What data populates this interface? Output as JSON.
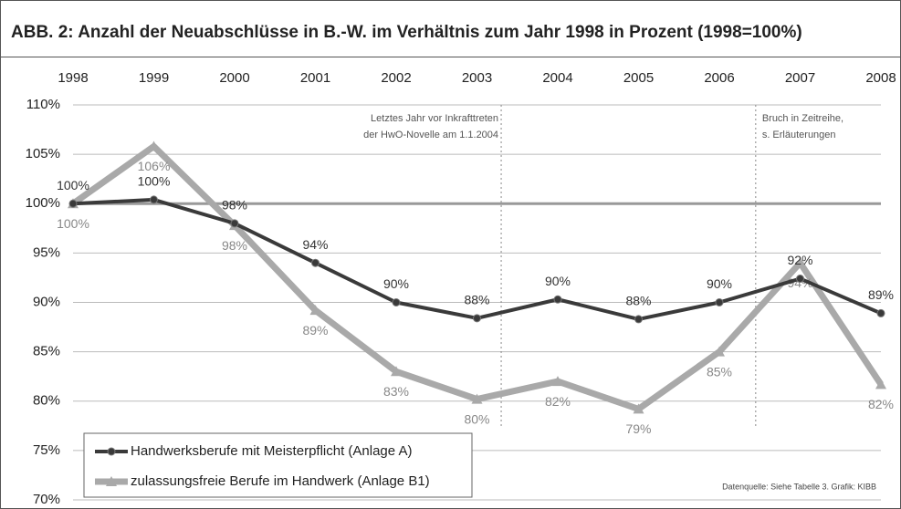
{
  "chart_data": {
    "type": "line",
    "title": "ABB. 2: Anzahl der Neuabschlüsse in B.-W. im Verhältnis zum Jahr 1998 in Prozent (1998=100%)",
    "x": [
      1998,
      1999,
      2000,
      2001,
      2002,
      2003,
      2004,
      2005,
      2006,
      2007,
      2008
    ],
    "xlim": [
      1998,
      2008
    ],
    "xticks": [
      1998,
      1999,
      2000,
      2001,
      2002,
      2003,
      2004,
      2005,
      2006,
      2007,
      2008
    ],
    "ylim": [
      70,
      110
    ],
    "yticks": [
      {
        "value": 70,
        "label": "70%"
      },
      {
        "value": 75,
        "label": "75%"
      },
      {
        "value": 80,
        "label": "80%"
      },
      {
        "value": 85,
        "label": "85%"
      },
      {
        "value": 90,
        "label": "90%"
      },
      {
        "value": 95,
        "label": "95%"
      },
      {
        "value": 100,
        "label": "100%"
      },
      {
        "value": 105,
        "label": "105%"
      },
      {
        "value": 110,
        "label": "110%"
      }
    ],
    "grid": true,
    "reference_line": 100,
    "legend": "lower left",
    "series": [
      {
        "name": "Handwerksberufe mit Meisterpflicht (Anlage A)",
        "color": "#3a3a3a",
        "marker": "circle",
        "values": [
          100,
          100.4,
          98,
          94,
          90,
          88.4,
          90.3,
          88.3,
          90,
          92.4,
          88.9
        ],
        "value_labels": [
          "100%",
          "100%",
          "98%",
          "94%",
          "90%",
          "88%",
          "90%",
          "88%",
          "90%",
          "92%",
          "89%"
        ]
      },
      {
        "name": "zulassungsfreie Berufe im Handwerk (Anlage B1)",
        "color": "#a9a9a9",
        "marker": "triangle",
        "values": [
          100,
          105.8,
          97.8,
          89.2,
          83,
          80.2,
          82,
          79.2,
          85,
          94,
          81.7
        ],
        "value_labels": [
          "100%",
          "106%",
          "98%",
          "89%",
          "83%",
          "80%",
          "82%",
          "79%",
          "85%",
          "94%",
          "82%"
        ]
      }
    ],
    "annotations": [
      {
        "x": 2003.3,
        "lines": [
          "Letztes Jahr vor Inkrafttreten",
          "der HwO-Novelle am 1.1.2004"
        ]
      },
      {
        "x": 2006.45,
        "lines": [
          "Bruch in Zeitreihe,",
          "s. Erläuterungen"
        ]
      }
    ],
    "source": "Datenquelle: Siehe Tabelle 3. Grafik: KIBB"
  }
}
